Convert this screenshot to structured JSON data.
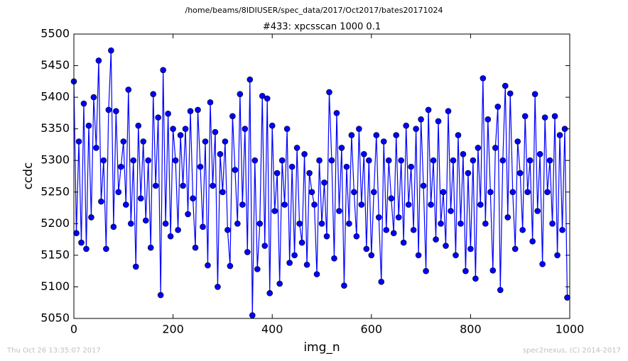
{
  "chart_data": {
    "type": "line",
    "suptitle": "/home/beams/8IDIUSER/spec_data/2017/Oct2017/bates20171024",
    "title": "#433: xpcsscan 1000 0.1",
    "x_label": "img_n",
    "y_label": "ccdc",
    "footer_left": "Thu Oct 26 13:35:07 2017",
    "footer_right": "spec2nexus, (C) 2014-2017",
    "xlim": [
      0,
      1000
    ],
    "xticks": [
      0,
      200,
      400,
      600,
      800,
      1000
    ],
    "ylim": [
      5050,
      5500
    ],
    "yticks": [
      5050,
      5100,
      5150,
      5200,
      5250,
      5300,
      5350,
      5400,
      5450,
      5500
    ],
    "grid": false,
    "x": [
      0,
      5,
      10,
      15,
      20,
      25,
      30,
      35,
      40,
      45,
      50,
      55,
      60,
      65,
      70,
      75,
      80,
      85,
      90,
      95,
      100,
      105,
      110,
      115,
      120,
      125,
      130,
      135,
      140,
      145,
      150,
      155,
      160,
      165,
      170,
      175,
      180,
      185,
      190,
      195,
      200,
      205,
      210,
      215,
      220,
      225,
      230,
      235,
      240,
      245,
      250,
      255,
      260,
      265,
      270,
      275,
      280,
      285,
      290,
      295,
      300,
      305,
      310,
      315,
      320,
      325,
      330,
      335,
      340,
      345,
      350,
      355,
      360,
      365,
      370,
      375,
      380,
      385,
      390,
      395,
      400,
      405,
      410,
      415,
      420,
      425,
      430,
      435,
      440,
      445,
      450,
      455,
      460,
      465,
      470,
      475,
      480,
      485,
      490,
      495,
      500,
      505,
      510,
      515,
      520,
      525,
      530,
      535,
      540,
      545,
      550,
      555,
      560,
      565,
      570,
      575,
      580,
      585,
      590,
      595,
      600,
      605,
      610,
      615,
      620,
      625,
      630,
      635,
      640,
      645,
      650,
      655,
      660,
      665,
      670,
      675,
      680,
      685,
      690,
      695,
      700,
      705,
      710,
      715,
      720,
      725,
      730,
      735,
      740,
      745,
      750,
      755,
      760,
      765,
      770,
      775,
      780,
      785,
      790,
      795,
      800,
      805,
      810,
      815,
      820,
      825,
      830,
      835,
      840,
      845,
      850,
      855,
      860,
      865,
      870,
      875,
      880,
      885,
      890,
      895,
      900,
      905,
      910,
      915,
      920,
      925,
      930,
      935,
      940,
      945,
      950,
      955,
      960,
      965,
      970,
      975,
      980,
      985,
      990,
      995
    ],
    "series": [
      {
        "color": "#0000ff",
        "values": [
          5425,
          5185,
          5330,
          5170,
          5390,
          5160,
          5355,
          5210,
          5400,
          5320,
          5458,
          5235,
          5300,
          5160,
          5380,
          5474,
          5195,
          5378,
          5250,
          5290,
          5330,
          5230,
          5412,
          5200,
          5300,
          5132,
          5355,
          5240,
          5330,
          5205,
          5300,
          5162,
          5405,
          5260,
          5368,
          5087,
          5443,
          5200,
          5374,
          5180,
          5350,
          5300,
          5190,
          5340,
          5260,
          5350,
          5215,
          5378,
          5240,
          5162,
          5380,
          5290,
          5195,
          5330,
          5134,
          5392,
          5260,
          5345,
          5100,
          5310,
          5250,
          5330,
          5190,
          5133,
          5370,
          5285,
          5200,
          5405,
          5230,
          5350,
          5155,
          5428,
          5055,
          5300,
          5128,
          5200,
          5402,
          5165,
          5398,
          5090,
          5355,
          5220,
          5280,
          5105,
          5300,
          5230,
          5350,
          5138,
          5290,
          5150,
          5320,
          5200,
          5170,
          5310,
          5135,
          5280,
          5250,
          5230,
          5120,
          5300,
          5200,
          5265,
          5180,
          5408,
          5300,
          5145,
          5375,
          5220,
          5320,
          5102,
          5290,
          5200,
          5340,
          5250,
          5180,
          5350,
          5230,
          5310,
          5160,
          5300,
          5150,
          5250,
          5340,
          5210,
          5108,
          5330,
          5190,
          5300,
          5240,
          5185,
          5340,
          5210,
          5300,
          5170,
          5355,
          5230,
          5290,
          5190,
          5350,
          5150,
          5365,
          5260,
          5125,
          5380,
          5230,
          5300,
          5175,
          5362,
          5200,
          5250,
          5165,
          5378,
          5220,
          5300,
          5150,
          5340,
          5200,
          5310,
          5125,
          5280,
          5160,
          5300,
          5113,
          5320,
          5230,
          5430,
          5200,
          5365,
          5250,
          5126,
          5320,
          5385,
          5095,
          5300,
          5418,
          5210,
          5406,
          5250,
          5160,
          5330,
          5280,
          5190,
          5370,
          5250,
          5300,
          5172,
          5405,
          5220,
          5310,
          5136,
          5368,
          5250,
          5300,
          5200,
          5370,
          5150,
          5340,
          5190,
          5350,
          5083
        ]
      }
    ]
  }
}
